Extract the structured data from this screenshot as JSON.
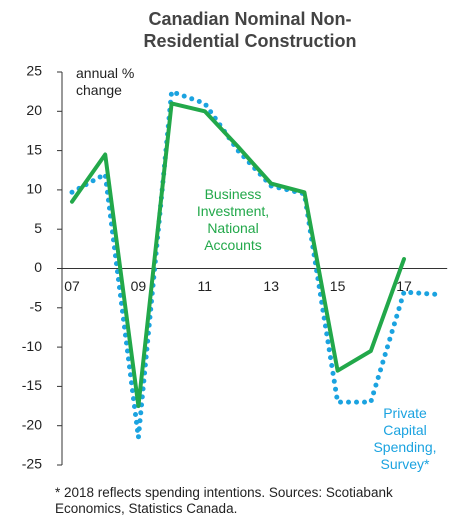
{
  "chart_data": {
    "type": "line",
    "title": "Canadian Nominal Non-Residential Construction",
    "y_label": "annual % change",
    "categories": [
      "07",
      null,
      "09",
      null,
      "11",
      null,
      "13",
      null,
      "15",
      null,
      "17",
      null
    ],
    "series": [
      {
        "name": "Business Investment, National Accounts",
        "color": "#22a84a",
        "style": "solid",
        "values": [
          8.5,
          14.5,
          -17.5,
          21,
          20,
          15.5,
          10.8,
          9.7,
          -13,
          -10.5,
          1.2,
          null
        ]
      },
      {
        "name": "Private Capital Spending, Survey*",
        "color": "#1ba3e0",
        "style": "dotted",
        "values": [
          9.7,
          12,
          -21.5,
          22.5,
          21,
          15,
          10.5,
          9.5,
          -17,
          -17,
          -3,
          -3.3
        ]
      }
    ],
    "ylim": [
      -25,
      25
    ],
    "yticks": [
      -25,
      -20,
      -15,
      -10,
      -5,
      0,
      5,
      10,
      15,
      20,
      25
    ],
    "footnote": "* 2018 reflects spending intentions. Sources: Scotiabank Economics, Statistics Canada."
  }
}
